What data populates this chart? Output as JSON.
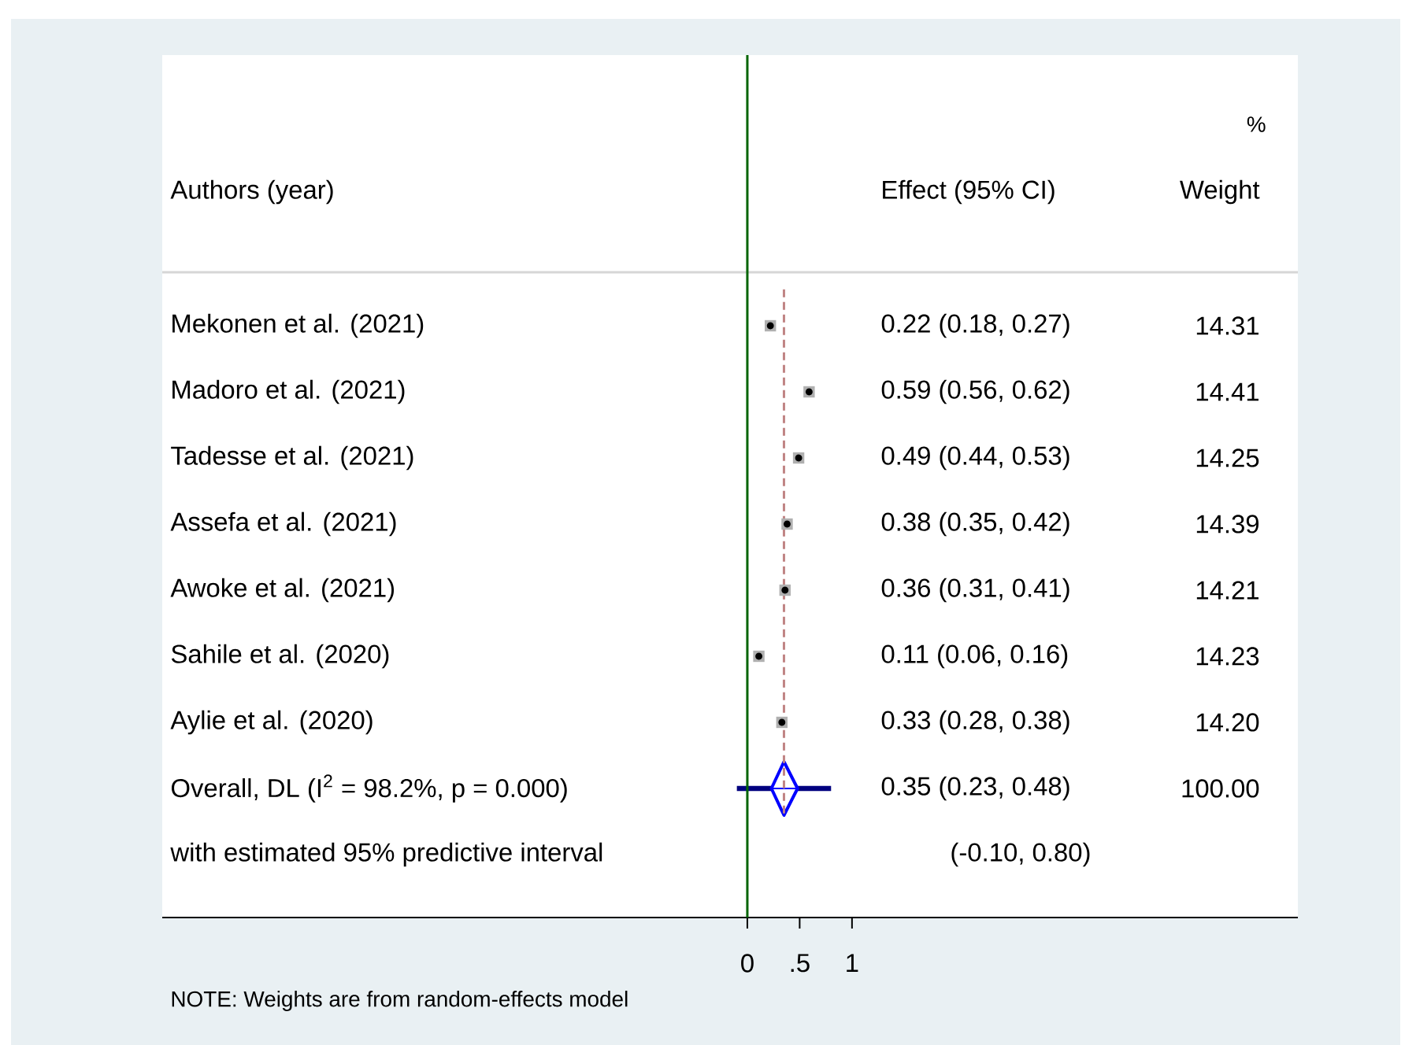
{
  "chart_data": {
    "type": "scatter",
    "orientation": "horizontal",
    "ylabel": "Authors (year)",
    "categories": [
      "Mekonen et al. (2021)",
      "Madoro et al. (2021)",
      "Tadesse et al. (2021)",
      "Assefa et al. (2021)",
      "Awoke et al. (2021)",
      "Sahile et al. (2020)",
      "Aylie et al. (2020)",
      "Overall, DL (I$^{2}$ = 98.2%, p = 0.000)",
      "with estimated 95% predictive interval"
    ],
    "series": [
      {
        "color": "#b0b0b0",
        "marker": "square",
        "values": [
          0.22,
          0.59,
          0.49,
          0.38,
          0.36,
          0.11,
          0.33,
          null,
          null
        ],
        "errors": [
          [
            0.18,
            0.27
          ],
          [
            0.56,
            0.62
          ],
          [
            0.44,
            0.53
          ],
          [
            0.35,
            0.42
          ],
          [
            0.31,
            0.41
          ],
          [
            0.06,
            0.16
          ],
          [
            0.28,
            0.38
          ],
          null,
          null
        ]
      },
      {
        "color": "#0000ff",
        "marker": "diamond",
        "values": [
          null,
          null,
          null,
          null,
          null,
          null,
          null,
          0.35,
          null
        ],
        "errors": [
          null,
          null,
          null,
          null,
          null,
          null,
          null,
          [
            0.23,
            0.48
          ],
          null
        ]
      },
      {
        "type": "bar",
        "color": "#00007f",
        "values": [
          null,
          null,
          null,
          null,
          null,
          null,
          null,
          0.9,
          null
        ],
        "base": [
          null,
          null,
          null,
          null,
          null,
          null,
          null,
          -0.1,
          null
        ]
      }
    ],
    "xlim": [
      -5.59,
      5.26
    ],
    "xticks": [
      0,
      {
        "value": 0.5,
        "label": ".5"
      },
      1
    ],
    "ref_lines": [
      {
        "axis": "x",
        "value": 0,
        "color": "#006400"
      },
      {
        "axis": "x",
        "value": 0.35,
        "color": "#c08484",
        "line_style": "dashed"
      }
    ],
    "annotations": [
      "Effect (95% CI)",
      "%",
      "Weight",
      "0.22 (0.18, 0.27)",
      "14.31",
      "0.59 (0.56, 0.62)",
      "14.41",
      "0.49 (0.44, 0.53)",
      "14.25",
      "0.38 (0.35, 0.42)",
      "14.39",
      "0.36 (0.31, 0.41)",
      "14.21",
      "0.11 (0.06, 0.16)",
      "14.23",
      "0.33 (0.28, 0.38)",
      "14.20",
      "0.35 (0.23, 0.48)",
      "100.00",
      "(-0.10, 0.80)",
      "NOTE: Weights are from random-effects model"
    ]
  }
}
